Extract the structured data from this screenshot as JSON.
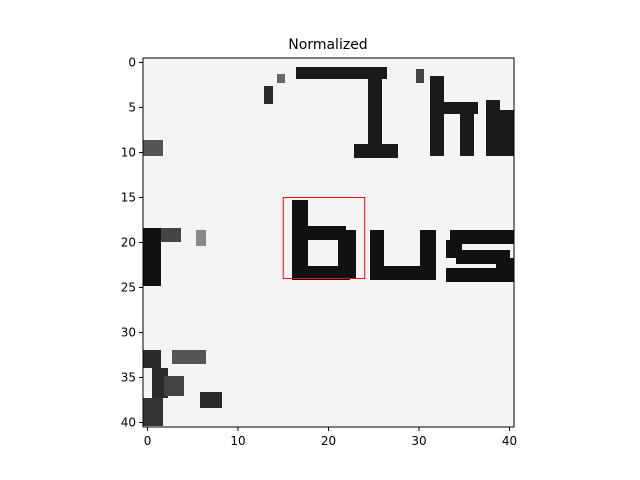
{
  "figure": {
    "title": "Normalized"
  },
  "image": {
    "width": 41,
    "height": 41,
    "colormap": "gray",
    "content": "cropped scan of printed text with fragments 'Th', 'r bus', 'y,'"
  },
  "axes": {
    "x_ticks": [
      0,
      10,
      20,
      30,
      40
    ],
    "y_ticks": [
      0,
      5,
      10,
      15,
      20,
      25,
      30,
      35,
      40
    ],
    "x_range": [
      -0.5,
      40.5
    ],
    "y_range": [
      -0.5,
      40.5
    ]
  },
  "highlight_box": {
    "color": "#ff0000",
    "x_start": 15,
    "x_end": 24,
    "y_start": 15,
    "y_end": 24
  }
}
